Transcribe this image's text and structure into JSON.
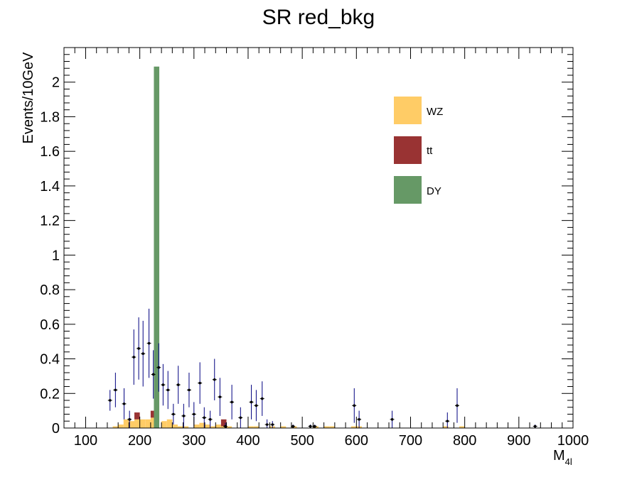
{
  "chart_data": {
    "type": "bar",
    "title": "SR red_bkg",
    "xlabel": "M",
    "xlabel_sub": "4l",
    "ylabel": "Events/10GeV",
    "xlim": [
      60,
      1000
    ],
    "ylim": [
      0,
      2.2
    ],
    "x_ticks": [
      "100",
      "200",
      "300",
      "400",
      "500",
      "600",
      "700",
      "800",
      "900",
      "1000"
    ],
    "x_tick_values": [
      100,
      200,
      300,
      400,
      500,
      600,
      700,
      800,
      900,
      1000
    ],
    "y_ticks": [
      "0",
      "0.2",
      "0.4",
      "0.6",
      "0.8",
      "1",
      "1.2",
      "1.4",
      "1.6",
      "1.8",
      "2"
    ],
    "y_tick_values": [
      0,
      0.2,
      0.4,
      0.6,
      0.8,
      1.0,
      1.2,
      1.4,
      1.6,
      1.8,
      2.0
    ],
    "grid": false,
    "legend_position": "top-right",
    "stacked": true,
    "series": [
      {
        "name": "WZ",
        "color": "#ffcc66",
        "bins": [
          [
            150,
            160,
            0.01
          ],
          [
            160,
            170,
            0.02
          ],
          [
            170,
            180,
            0.05
          ],
          [
            180,
            190,
            0.04
          ],
          [
            190,
            200,
            0.05
          ],
          [
            200,
            210,
            0.05
          ],
          [
            210,
            220,
            0.05
          ],
          [
            220,
            230,
            0.06
          ],
          [
            240,
            250,
            0.04
          ],
          [
            250,
            260,
            0.05
          ],
          [
            260,
            270,
            0.02
          ],
          [
            270,
            280,
            0.01
          ],
          [
            280,
            290,
            0.01
          ],
          [
            300,
            310,
            0.02
          ],
          [
            310,
            320,
            0.03
          ],
          [
            320,
            330,
            0.02
          ],
          [
            330,
            340,
            0.01
          ],
          [
            340,
            350,
            0.02
          ],
          [
            350,
            360,
            0.01
          ],
          [
            360,
            370,
            0.01
          ],
          [
            400,
            410,
            0.01
          ],
          [
            410,
            420,
            0.01
          ],
          [
            440,
            450,
            0.01
          ],
          [
            460,
            470,
            0.01
          ],
          [
            480,
            490,
            0.01
          ],
          [
            520,
            530,
            0.01
          ],
          [
            540,
            550,
            0.01
          ],
          [
            550,
            560,
            0.01
          ],
          [
            590,
            600,
            0.01
          ],
          [
            600,
            610,
            0.01
          ],
          [
            760,
            770,
            0.01
          ],
          [
            790,
            800,
            0.01
          ]
        ]
      },
      {
        "name": "tt",
        "color": "#993333",
        "bins": [
          [
            190,
            200,
            0.04
          ],
          [
            220,
            230,
            0.04
          ],
          [
            350,
            360,
            0.04
          ]
        ]
      },
      {
        "name": "DY",
        "color": "#669966",
        "bins": [
          [
            226,
            236,
            2.09
          ]
        ]
      }
    ],
    "points": {
      "color": "#000000",
      "error_color": "#000080",
      "values": [
        {
          "x": 145,
          "y": 0.16,
          "err": 0.06
        },
        {
          "x": 155,
          "y": 0.22,
          "err": 0.1
        },
        {
          "x": 171,
          "y": 0.14,
          "err": 0.09
        },
        {
          "x": 181,
          "y": 0.05,
          "err": 0.05
        },
        {
          "x": 189,
          "y": 0.41,
          "err": 0.16
        },
        {
          "x": 198,
          "y": 0.46,
          "err": 0.18
        },
        {
          "x": 206,
          "y": 0.43,
          "err": 0.19
        },
        {
          "x": 217,
          "y": 0.49,
          "err": 0.2
        },
        {
          "x": 225,
          "y": 0.31,
          "err": 0.14
        },
        {
          "x": 235,
          "y": 0.35,
          "err": 0.14
        },
        {
          "x": 243,
          "y": 0.25,
          "err": 0.12
        },
        {
          "x": 252,
          "y": 0.22,
          "err": 0.11
        },
        {
          "x": 262,
          "y": 0.08,
          "err": 0.06
        },
        {
          "x": 271,
          "y": 0.25,
          "err": 0.11
        },
        {
          "x": 281,
          "y": 0.07,
          "err": 0.07
        },
        {
          "x": 291,
          "y": 0.22,
          "err": 0.1
        },
        {
          "x": 300,
          "y": 0.08,
          "err": 0.07
        },
        {
          "x": 311,
          "y": 0.26,
          "err": 0.12
        },
        {
          "x": 319,
          "y": 0.06,
          "err": 0.06
        },
        {
          "x": 330,
          "y": 0.05,
          "err": 0.05
        },
        {
          "x": 338,
          "y": 0.28,
          "err": 0.12
        },
        {
          "x": 348,
          "y": 0.18,
          "err": 0.11
        },
        {
          "x": 358,
          "y": 0.01,
          "err": 0.02
        },
        {
          "x": 370,
          "y": 0.15,
          "err": 0.1
        },
        {
          "x": 386,
          "y": 0.06,
          "err": 0.06
        },
        {
          "x": 406,
          "y": 0.15,
          "err": 0.1
        },
        {
          "x": 415,
          "y": 0.13,
          "err": 0.09
        },
        {
          "x": 426,
          "y": 0.17,
          "err": 0.1
        },
        {
          "x": 435,
          "y": 0.02,
          "err": 0.03
        },
        {
          "x": 445,
          "y": 0.02,
          "err": 0.02
        },
        {
          "x": 483,
          "y": 0.01,
          "err": 0.01
        },
        {
          "x": 515,
          "y": 0.01,
          "err": 0.01
        },
        {
          "x": 523,
          "y": 0.01,
          "err": 0.01
        },
        {
          "x": 596,
          "y": 0.13,
          "err": 0.1
        },
        {
          "x": 605,
          "y": 0.05,
          "err": 0.05
        },
        {
          "x": 666,
          "y": 0.05,
          "err": 0.05
        },
        {
          "x": 768,
          "y": 0.04,
          "err": 0.05
        },
        {
          "x": 786,
          "y": 0.13,
          "err": 0.1
        },
        {
          "x": 930,
          "y": 0.01,
          "err": 0.01
        }
      ]
    }
  }
}
